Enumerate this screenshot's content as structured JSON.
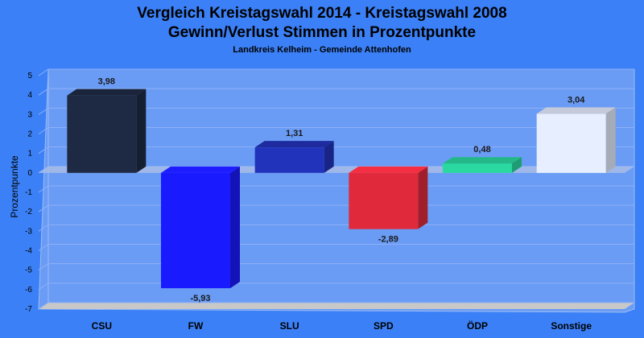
{
  "chart_data": {
    "type": "bar",
    "title_line1": "Vergleich Kreistagswahl 2014 - Kreistagswahl 2008",
    "title_line2": "Gewinn/Verlust Stimmen in Prozentpunkte",
    "subtitle": "Landkreis Kelheim - Gemeinde Attenhofen",
    "ylabel": "Prozentpunkte",
    "ylim": [
      -7,
      5
    ],
    "yticks": [
      "5",
      "4",
      "3",
      "2",
      "1",
      "0",
      "-1",
      "-2",
      "-3",
      "-4",
      "-5",
      "-6",
      "-7"
    ],
    "categories": [
      "CSU",
      "FW",
      "SLU",
      "SPD",
      "ÖDP",
      "Sonstige"
    ],
    "values": [
      3.98,
      -5.93,
      1.31,
      -2.89,
      0.48,
      3.04
    ],
    "value_labels": [
      "3,98",
      "-5,93",
      "1,31",
      "-2,89",
      "0,48",
      "3,04"
    ],
    "colors": [
      "#1e2a44",
      "#1a1aff",
      "#2233bb",
      "#e02a3c",
      "#2ad9a0",
      "#e6eeff"
    ],
    "legend": "none",
    "grid": true
  }
}
